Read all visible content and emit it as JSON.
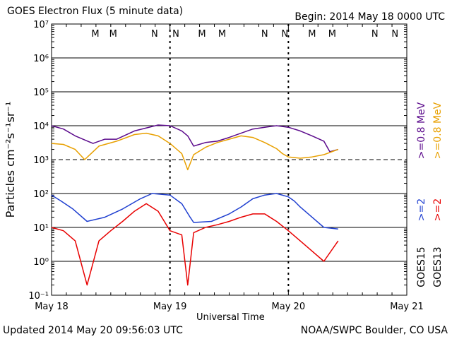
{
  "header": {
    "title": "GOES Electron Flux (5 minute data)",
    "begin": "Begin: 2014 May 18 0000 UTC"
  },
  "footer": {
    "updated": "Updated 2014 May 20 09:56:03 UTC",
    "credit": "NOAA/SWPC Boulder, CO USA"
  },
  "colors": {
    "goes15_08": "#5b0a8c",
    "goes13_08": "#e8a000",
    "goes15_2": "#1f3fd0",
    "goes13_2": "#e80000",
    "mark_M": "#e80000",
    "mark_N": "#1f3fd0"
  },
  "chart_data": {
    "type": "line",
    "title": "GOES Electron Flux (5 minute data)",
    "xlabel": "Universal Time",
    "ylabel": "Particles cm⁻²s⁻¹sr⁻¹",
    "y_scale": "log",
    "ylim": [
      0.1,
      10000000
    ],
    "y_ticks": [
      "10⁻¹",
      "10⁰",
      "10¹",
      "10²",
      "10³",
      "10⁴",
      "10⁵",
      "10⁶",
      "10⁷"
    ],
    "x_ticks": [
      "May 18",
      "May 19",
      "May 20",
      "May 21"
    ],
    "threshold": 1000,
    "midnight_markers": [
      {
        "label": "M",
        "satellite": "GOES13",
        "day": 0.37
      },
      {
        "label": "M",
        "satellite": "GOES15",
        "day": 0.52
      },
      {
        "label": "N",
        "satellite": "GOES13",
        "day": 0.87
      },
      {
        "label": "N",
        "satellite": "GOES15",
        "day": 1.05
      },
      {
        "label": "M",
        "satellite": "GOES13",
        "day": 1.27
      },
      {
        "label": "M",
        "satellite": "GOES15",
        "day": 1.44
      },
      {
        "label": "N",
        "satellite": "GOES13",
        "day": 1.8
      },
      {
        "label": "N",
        "satellite": "GOES15",
        "day": 1.97
      },
      {
        "label": "M",
        "satellite": "GOES13",
        "day": 2.2
      },
      {
        "label": "M",
        "satellite": "GOES15",
        "day": 2.37
      },
      {
        "label": "N",
        "satellite": "GOES13",
        "day": 2.73
      },
      {
        "label": "N",
        "satellite": "GOES15",
        "day": 2.9
      }
    ],
    "series_labels": {
      "goes15": "GOES15",
      "goes13": "GOES13",
      "goes15_08": ">=0.8 MeV",
      "goes13_08": ">=0.8 MeV",
      "goes15_2": ">=2",
      "goes13_2": ">=2"
    },
    "series": [
      {
        "name": "GOES15 >=0.8 MeV",
        "color_key": "goes15_08",
        "x": [
          0.0,
          0.1,
          0.2,
          0.35,
          0.45,
          0.55,
          0.7,
          0.9,
          1.0,
          1.1,
          1.15,
          1.2,
          1.3,
          1.4,
          1.5,
          1.6,
          1.7,
          1.8,
          1.9,
          2.0,
          2.1,
          2.2,
          2.3,
          2.35,
          2.42
        ],
        "y": [
          10000,
          8000,
          5000,
          3000,
          4000,
          4000,
          7000,
          10500,
          10000,
          7000,
          5000,
          2500,
          3200,
          3500,
          4500,
          6000,
          8000,
          9000,
          10000,
          9000,
          7000,
          5000,
          3500,
          1700,
          2000
        ]
      },
      {
        "name": "GOES13 >=0.8 MeV",
        "color_key": "goes13_08",
        "x": [
          0.0,
          0.1,
          0.2,
          0.28,
          0.4,
          0.55,
          0.7,
          0.8,
          0.9,
          1.0,
          1.1,
          1.15,
          1.2,
          1.3,
          1.4,
          1.5,
          1.6,
          1.7,
          1.8,
          1.9,
          1.95,
          2.0,
          2.1,
          2.2,
          2.3,
          2.42
        ],
        "y": [
          3000,
          2800,
          2000,
          1000,
          2500,
          3500,
          5500,
          6000,
          5000,
          3000,
          1500,
          500,
          1400,
          2300,
          3200,
          4000,
          5000,
          4500,
          3200,
          2100,
          1500,
          1200,
          1100,
          1200,
          1400,
          2000
        ]
      },
      {
        "name": "GOES15 >=2",
        "color_key": "goes15_2",
        "x": [
          0.0,
          0.08,
          0.18,
          0.3,
          0.45,
          0.6,
          0.75,
          0.85,
          1.0,
          1.1,
          1.17,
          1.2,
          1.35,
          1.5,
          1.6,
          1.7,
          1.8,
          1.9,
          2.0,
          2.05,
          2.1,
          2.2,
          2.3,
          2.42
        ],
        "y": [
          90,
          60,
          35,
          15,
          20,
          35,
          70,
          100,
          90,
          50,
          20,
          14,
          15,
          25,
          40,
          70,
          90,
          100,
          80,
          60,
          40,
          20,
          10,
          9
        ]
      },
      {
        "name": "GOES13 >=2",
        "color_key": "goes13_2",
        "x": [
          0.0,
          0.1,
          0.2,
          0.3,
          0.4,
          0.5,
          0.6,
          0.7,
          0.8,
          0.9,
          1.0,
          1.1,
          1.15,
          1.2,
          1.3,
          1.4,
          1.5,
          1.6,
          1.7,
          1.8,
          1.9,
          2.0,
          2.1,
          2.2,
          2.3,
          2.42
        ],
        "y": [
          10,
          8,
          4,
          0.2,
          4,
          8,
          15,
          30,
          50,
          30,
          8,
          6,
          0.2,
          7,
          10,
          12,
          15,
          20,
          25,
          25,
          15,
          8,
          4,
          2,
          1,
          4
        ]
      }
    ]
  }
}
